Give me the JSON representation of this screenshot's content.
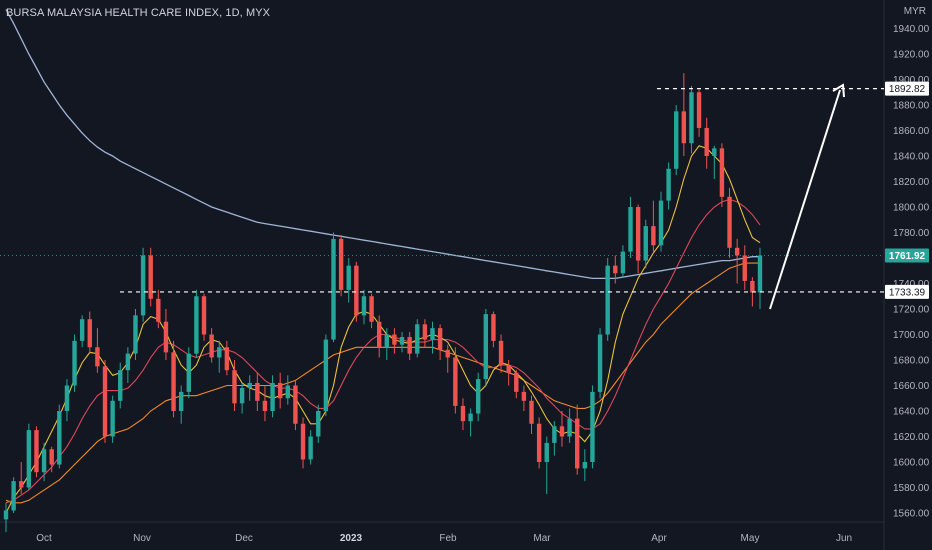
{
  "header": {
    "title": "BURSA MALAYSIA HEALTH CARE INDEX, 1D, MYX",
    "currency": "MYR"
  },
  "colors": {
    "background": "#131722",
    "up": "#26a69a",
    "down": "#ef5350",
    "ma_fast": "#e8c13a",
    "ma_mid": "#e0475a",
    "ma_slow": "#f28a2c",
    "ma_long": "#9fb5d6",
    "last_price_tag": "#26a69a",
    "dashed_level": "#ffffff"
  },
  "price_tags": [
    {
      "name": "target",
      "value": 1892.82,
      "label": "1892.82"
    },
    {
      "name": "last",
      "value": 1761.92,
      "label": "1761.92"
    },
    {
      "name": "support",
      "value": 1733.39,
      "label": "1733.39"
    }
  ],
  "chart_data": {
    "type": "candlestick",
    "title": "BURSA MALAYSIA HEALTH CARE INDEX, 1D, MYX",
    "ylabel": "MYR",
    "ylim": [
      1552,
      1962
    ],
    "y_ticks": [
      1560,
      1580,
      1600,
      1620,
      1640,
      1660,
      1680,
      1700,
      1720,
      1740,
      1760,
      1780,
      1800,
      1820,
      1840,
      1860,
      1880,
      1900,
      1920,
      1940
    ],
    "x_labels": [
      {
        "label": "Oct",
        "bold": false
      },
      {
        "label": "Nov",
        "bold": false
      },
      {
        "label": "Dec",
        "bold": false
      },
      {
        "label": "2023",
        "bold": true
      },
      {
        "label": "Feb",
        "bold": false
      },
      {
        "label": "Mar",
        "bold": false
      },
      {
        "label": "Apr",
        "bold": false
      },
      {
        "label": "May",
        "bold": false
      },
      {
        "label": "Jun",
        "bold": false
      }
    ],
    "levels": [
      {
        "name": "support",
        "value": 1733.39
      },
      {
        "name": "target",
        "value": 1892.82
      }
    ],
    "last_price": 1761.92,
    "candles": [
      [
        1555,
        1568,
        1545,
        1562
      ],
      [
        1562,
        1588,
        1560,
        1585
      ],
      [
        1585,
        1600,
        1575,
        1580
      ],
      [
        1580,
        1630,
        1578,
        1625
      ],
      [
        1625,
        1628,
        1588,
        1592
      ],
      [
        1592,
        1615,
        1585,
        1610
      ],
      [
        1610,
        1612,
        1592,
        1598
      ],
      [
        1598,
        1645,
        1595,
        1640
      ],
      [
        1640,
        1665,
        1632,
        1660
      ],
      [
        1660,
        1700,
        1655,
        1695
      ],
      [
        1695,
        1715,
        1690,
        1712
      ],
      [
        1712,
        1718,
        1685,
        1690
      ],
      [
        1690,
        1705,
        1670,
        1675
      ],
      [
        1675,
        1680,
        1615,
        1620
      ],
      [
        1620,
        1652,
        1615,
        1648
      ],
      [
        1648,
        1678,
        1642,
        1672
      ],
      [
        1672,
        1690,
        1662,
        1685
      ],
      [
        1685,
        1720,
        1680,
        1715
      ],
      [
        1715,
        1768,
        1710,
        1762
      ],
      [
        1762,
        1768,
        1722,
        1728
      ],
      [
        1728,
        1735,
        1705,
        1710
      ],
      [
        1710,
        1720,
        1680,
        1686
      ],
      [
        1686,
        1695,
        1635,
        1640
      ],
      [
        1640,
        1660,
        1630,
        1655
      ],
      [
        1655,
        1690,
        1650,
        1685
      ],
      [
        1685,
        1735,
        1682,
        1730
      ],
      [
        1730,
        1732,
        1695,
        1700
      ],
      [
        1700,
        1705,
        1678,
        1682
      ],
      [
        1682,
        1695,
        1670,
        1690
      ],
      [
        1690,
        1695,
        1668,
        1672
      ],
      [
        1672,
        1680,
        1640,
        1646
      ],
      [
        1646,
        1662,
        1638,
        1658
      ],
      [
        1658,
        1668,
        1648,
        1662
      ],
      [
        1662,
        1670,
        1640,
        1648
      ],
      [
        1648,
        1660,
        1632,
        1640
      ],
      [
        1640,
        1668,
        1635,
        1662
      ],
      [
        1662,
        1670,
        1642,
        1650
      ],
      [
        1650,
        1668,
        1645,
        1660
      ],
      [
        1660,
        1664,
        1625,
        1630
      ],
      [
        1630,
        1635,
        1595,
        1602
      ],
      [
        1602,
        1625,
        1598,
        1620
      ],
      [
        1620,
        1645,
        1615,
        1640
      ],
      [
        1640,
        1700,
        1636,
        1696
      ],
      [
        1696,
        1780,
        1694,
        1775
      ],
      [
        1775,
        1778,
        1730,
        1735
      ],
      [
        1735,
        1760,
        1725,
        1754
      ],
      [
        1754,
        1757,
        1710,
        1715
      ],
      [
        1715,
        1735,
        1708,
        1730
      ],
      [
        1730,
        1732,
        1705,
        1710
      ],
      [
        1710,
        1715,
        1682,
        1690
      ],
      [
        1690,
        1705,
        1680,
        1700
      ],
      [
        1700,
        1705,
        1685,
        1692
      ],
      [
        1692,
        1702,
        1686,
        1698
      ],
      [
        1698,
        1702,
        1680,
        1685
      ],
      [
        1685,
        1712,
        1682,
        1708
      ],
      [
        1708,
        1712,
        1690,
        1696
      ],
      [
        1696,
        1710,
        1685,
        1705
      ],
      [
        1705,
        1708,
        1680,
        1688
      ],
      [
        1688,
        1692,
        1670,
        1682
      ],
      [
        1682,
        1690,
        1638,
        1644
      ],
      [
        1644,
        1650,
        1625,
        1632
      ],
      [
        1632,
        1642,
        1620,
        1638
      ],
      [
        1638,
        1670,
        1632,
        1665
      ],
      [
        1665,
        1720,
        1660,
        1716
      ],
      [
        1716,
        1718,
        1690,
        1695
      ],
      [
        1695,
        1700,
        1670,
        1676
      ],
      [
        1676,
        1680,
        1660,
        1670
      ],
      [
        1670,
        1672,
        1650,
        1655
      ],
      [
        1655,
        1660,
        1640,
        1648
      ],
      [
        1648,
        1652,
        1622,
        1630
      ],
      [
        1630,
        1635,
        1595,
        1600
      ],
      [
        1600,
        1620,
        1575,
        1615
      ],
      [
        1615,
        1632,
        1605,
        1628
      ],
      [
        1628,
        1640,
        1612,
        1620
      ],
      [
        1620,
        1642,
        1615,
        1634
      ],
      [
        1634,
        1645,
        1590,
        1595
      ],
      [
        1595,
        1610,
        1585,
        1600
      ],
      [
        1600,
        1660,
        1595,
        1655
      ],
      [
        1655,
        1705,
        1650,
        1700
      ],
      [
        1700,
        1760,
        1695,
        1754
      ],
      [
        1754,
        1762,
        1740,
        1748
      ],
      [
        1748,
        1770,
        1745,
        1765
      ],
      [
        1765,
        1808,
        1760,
        1800
      ],
      [
        1800,
        1802,
        1748,
        1758
      ],
      [
        1758,
        1790,
        1752,
        1785
      ],
      [
        1785,
        1805,
        1765,
        1770
      ],
      [
        1770,
        1812,
        1765,
        1805
      ],
      [
        1805,
        1835,
        1798,
        1830
      ],
      [
        1830,
        1880,
        1825,
        1875
      ],
      [
        1875,
        1905,
        1840,
        1850
      ],
      [
        1850,
        1895,
        1842,
        1890
      ],
      [
        1890,
        1892,
        1855,
        1862
      ],
      [
        1862,
        1870,
        1830,
        1840
      ],
      [
        1840,
        1848,
        1822,
        1846
      ],
      [
        1846,
        1850,
        1800,
        1808
      ],
      [
        1808,
        1815,
        1760,
        1768
      ],
      [
        1768,
        1775,
        1740,
        1762
      ],
      [
        1762,
        1770,
        1735,
        1742
      ],
      [
        1742,
        1745,
        1722,
        1733
      ],
      [
        1733,
        1768,
        1720,
        1762
      ]
    ],
    "series": [
      {
        "name": "",
        "key": "ma_fast",
        "values": [
          1560,
          1572,
          1580,
          1590,
          1600,
          1612,
          1624,
          1636,
          1650,
          1665,
          1678,
          1686,
          1685,
          1676,
          1668,
          1670,
          1678,
          1690,
          1708,
          1714,
          1712,
          1702,
          1688,
          1676,
          1670,
          1676,
          1690,
          1696,
          1694,
          1686,
          1672,
          1662,
          1658,
          1656,
          1652,
          1650,
          1652,
          1654,
          1650,
          1640,
          1630,
          1630,
          1640,
          1660,
          1690,
          1706,
          1716,
          1718,
          1716,
          1708,
          1700,
          1696,
          1694,
          1693,
          1696,
          1698,
          1700,
          1698,
          1694,
          1684,
          1672,
          1660,
          1654,
          1660,
          1672,
          1678,
          1676,
          1670,
          1664,
          1655,
          1645,
          1634,
          1626,
          1622,
          1624,
          1622,
          1616,
          1624,
          1640,
          1664,
          1694,
          1716,
          1730,
          1744,
          1754,
          1764,
          1772,
          1782,
          1800,
          1822,
          1840,
          1848,
          1846,
          1840,
          1834,
          1822,
          1806,
          1790,
          1776,
          1772
        ]
      },
      {
        "name": "",
        "key": "ma_mid",
        "values": [
          1568,
          1570,
          1574,
          1578,
          1584,
          1590,
          1596,
          1604,
          1612,
          1622,
          1634,
          1644,
          1652,
          1656,
          1656,
          1656,
          1658,
          1664,
          1672,
          1682,
          1690,
          1694,
          1692,
          1688,
          1684,
          1682,
          1684,
          1686,
          1688,
          1688,
          1686,
          1682,
          1676,
          1670,
          1664,
          1660,
          1658,
          1658,
          1656,
          1652,
          1646,
          1642,
          1642,
          1648,
          1660,
          1672,
          1682,
          1690,
          1696,
          1700,
          1700,
          1698,
          1696,
          1694,
          1694,
          1694,
          1696,
          1696,
          1696,
          1694,
          1690,
          1684,
          1678,
          1674,
          1674,
          1676,
          1676,
          1674,
          1670,
          1664,
          1658,
          1650,
          1644,
          1638,
          1634,
          1630,
          1626,
          1626,
          1630,
          1640,
          1652,
          1666,
          1680,
          1694,
          1708,
          1720,
          1730,
          1740,
          1752,
          1764,
          1776,
          1786,
          1794,
          1800,
          1804,
          1806,
          1804,
          1800,
          1794,
          1786
        ]
      },
      {
        "name": "",
        "key": "ma_slow",
        "values": [
          1570,
          1568,
          1568,
          1570,
          1574,
          1578,
          1582,
          1586,
          1592,
          1598,
          1604,
          1610,
          1616,
          1620,
          1622,
          1624,
          1626,
          1630,
          1634,
          1640,
          1644,
          1648,
          1650,
          1652,
          1652,
          1652,
          1654,
          1656,
          1658,
          1660,
          1660,
          1660,
          1660,
          1660,
          1660,
          1660,
          1660,
          1662,
          1664,
          1668,
          1672,
          1676,
          1680,
          1684,
          1686,
          1688,
          1690,
          1690,
          1690,
          1690,
          1690,
          1690,
          1690,
          1690,
          1690,
          1690,
          1690,
          1688,
          1686,
          1684,
          1682,
          1680,
          1678,
          1676,
          1674,
          1672,
          1670,
          1668,
          1664,
          1660,
          1656,
          1652,
          1648,
          1646,
          1644,
          1642,
          1642,
          1644,
          1648,
          1654,
          1662,
          1670,
          1678,
          1686,
          1694,
          1700,
          1708,
          1714,
          1720,
          1726,
          1732,
          1736,
          1740,
          1744,
          1748,
          1752,
          1754,
          1756,
          1756,
          1756
        ]
      },
      {
        "name": "",
        "key": "ma_long",
        "values": [
          1955,
          1944,
          1932,
          1920,
          1909,
          1898,
          1889,
          1880,
          1872,
          1865,
          1858,
          1852,
          1847,
          1843,
          1840,
          1836,
          1833,
          1830,
          1827,
          1824,
          1821,
          1818,
          1815,
          1812,
          1809,
          1806,
          1803,
          1800,
          1798,
          1796,
          1794,
          1792,
          1790,
          1788,
          1787,
          1786,
          1785,
          1784,
          1783,
          1782,
          1781,
          1780,
          1779,
          1778,
          1777,
          1776,
          1775,
          1774,
          1773,
          1772,
          1771,
          1770,
          1769,
          1768,
          1767,
          1766,
          1765,
          1764,
          1763,
          1762,
          1761,
          1760,
          1759,
          1758,
          1757,
          1756,
          1755,
          1754,
          1753,
          1752,
          1751,
          1750,
          1749,
          1748,
          1747,
          1746,
          1745,
          1744,
          1744,
          1744,
          1744,
          1745,
          1746,
          1747,
          1748,
          1749,
          1750,
          1751,
          1752,
          1753,
          1754,
          1755,
          1756,
          1757,
          1758,
          1758,
          1759,
          1760,
          1761,
          1761
        ]
      }
    ]
  }
}
